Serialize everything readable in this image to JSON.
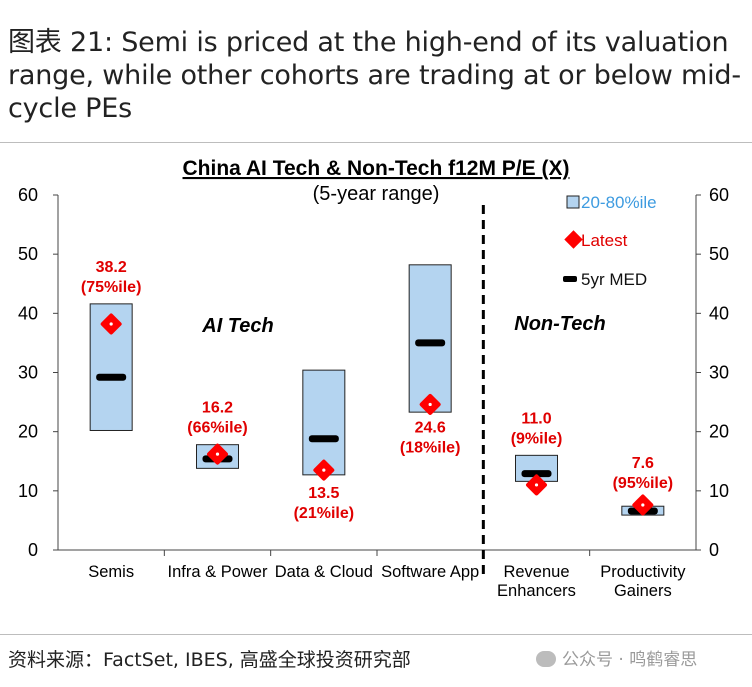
{
  "headline": "图表 21: Semi is priced at the high-end of its valuation range, while other cohorts are trading at or below mid-cycle PEs",
  "source": "资料来源：FactSet, IBES, 高盛全球投资研究部",
  "watermark": "公众号 · 鸣鹤睿思",
  "colors": {
    "box": "#b4d4f0",
    "box_border": "#222222",
    "latest": "#ff0000",
    "label": "#e00000",
    "legend_box_text": "#3d9be0",
    "median": "#000000"
  },
  "chart_data": {
    "type": "range-box",
    "title": "China AI Tech & Non-Tech f12M P/E (X)",
    "subtitle": "(5-year range)",
    "ylim": [
      0,
      60
    ],
    "yticks": [
      "0",
      "10",
      "20",
      "30",
      "40",
      "50",
      "60"
    ],
    "groups": [
      "AI Tech",
      "Non-Tech"
    ],
    "legend": {
      "box": "20-80%ile",
      "latest": "Latest",
      "median": "5yr MED"
    },
    "categories": [
      {
        "label": [
          "Semis"
        ],
        "group": "AI Tech",
        "p20": 20.2,
        "p80": 41.6,
        "median": 29.2,
        "latest": 38.2,
        "value_label": "38.2",
        "pct_label": "(75%ile)",
        "label_pos": "above"
      },
      {
        "label": [
          "Infra & Power"
        ],
        "group": "AI Tech",
        "p20": 13.8,
        "p80": 17.8,
        "median": 15.4,
        "latest": 16.2,
        "value_label": "16.2",
        "pct_label": "(66%ile)",
        "label_pos": "above"
      },
      {
        "label": [
          "Data & Cloud"
        ],
        "group": "AI Tech",
        "p20": 12.7,
        "p80": 30.4,
        "median": 18.8,
        "latest": 13.5,
        "value_label": "13.5",
        "pct_label": "(21%ile)",
        "label_pos": "below"
      },
      {
        "label": [
          "Software App"
        ],
        "group": "AI Tech",
        "p20": 23.3,
        "p80": 48.2,
        "median": 35.0,
        "latest": 24.6,
        "value_label": "24.6",
        "pct_label": "(18%ile)",
        "label_pos": "below"
      },
      {
        "label": [
          "Revenue",
          "Enhancers"
        ],
        "group": "Non-Tech",
        "p20": 11.6,
        "p80": 16.0,
        "median": 12.9,
        "latest": 11.0,
        "value_label": "11.0",
        "pct_label": "(9%ile)",
        "label_pos": "above"
      },
      {
        "label": [
          "Productivity",
          "Gainers"
        ],
        "group": "Non-Tech",
        "p20": 5.9,
        "p80": 7.4,
        "median": 6.6,
        "latest": 7.6,
        "value_label": "7.6",
        "pct_label": "(95%ile)",
        "label_pos": "above"
      }
    ]
  }
}
